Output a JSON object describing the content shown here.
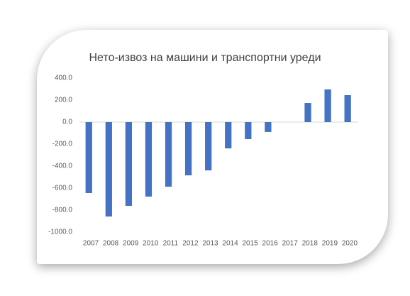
{
  "chart_data": {
    "type": "bar",
    "title": "Нето-извоз на машини и транспортни уреди",
    "categories": [
      "2007",
      "2008",
      "2009",
      "2010",
      "2011",
      "2012",
      "2013",
      "2014",
      "2015",
      "2016",
      "2017",
      "2018",
      "2019",
      "2020"
    ],
    "values": [
      -645,
      -858,
      -761,
      -677,
      -587,
      -484,
      -439,
      -239,
      -155,
      -90,
      null,
      174,
      297,
      245
    ],
    "color": "#4472c4",
    "ylim": [
      -1000,
      400
    ],
    "yticks": [
      {
        "value": -1000,
        "label": "-1000.0"
      },
      {
        "value": -800,
        "label": "-800.0"
      },
      {
        "value": -600,
        "label": "-600.0"
      },
      {
        "value": -400,
        "label": "-400.0"
      },
      {
        "value": -200,
        "label": "-200.0"
      },
      {
        "value": 0,
        "label": "0.0"
      },
      {
        "value": 200,
        "label": "200.0"
      },
      {
        "value": 400,
        "label": "400.0"
      }
    ],
    "grid": false
  }
}
